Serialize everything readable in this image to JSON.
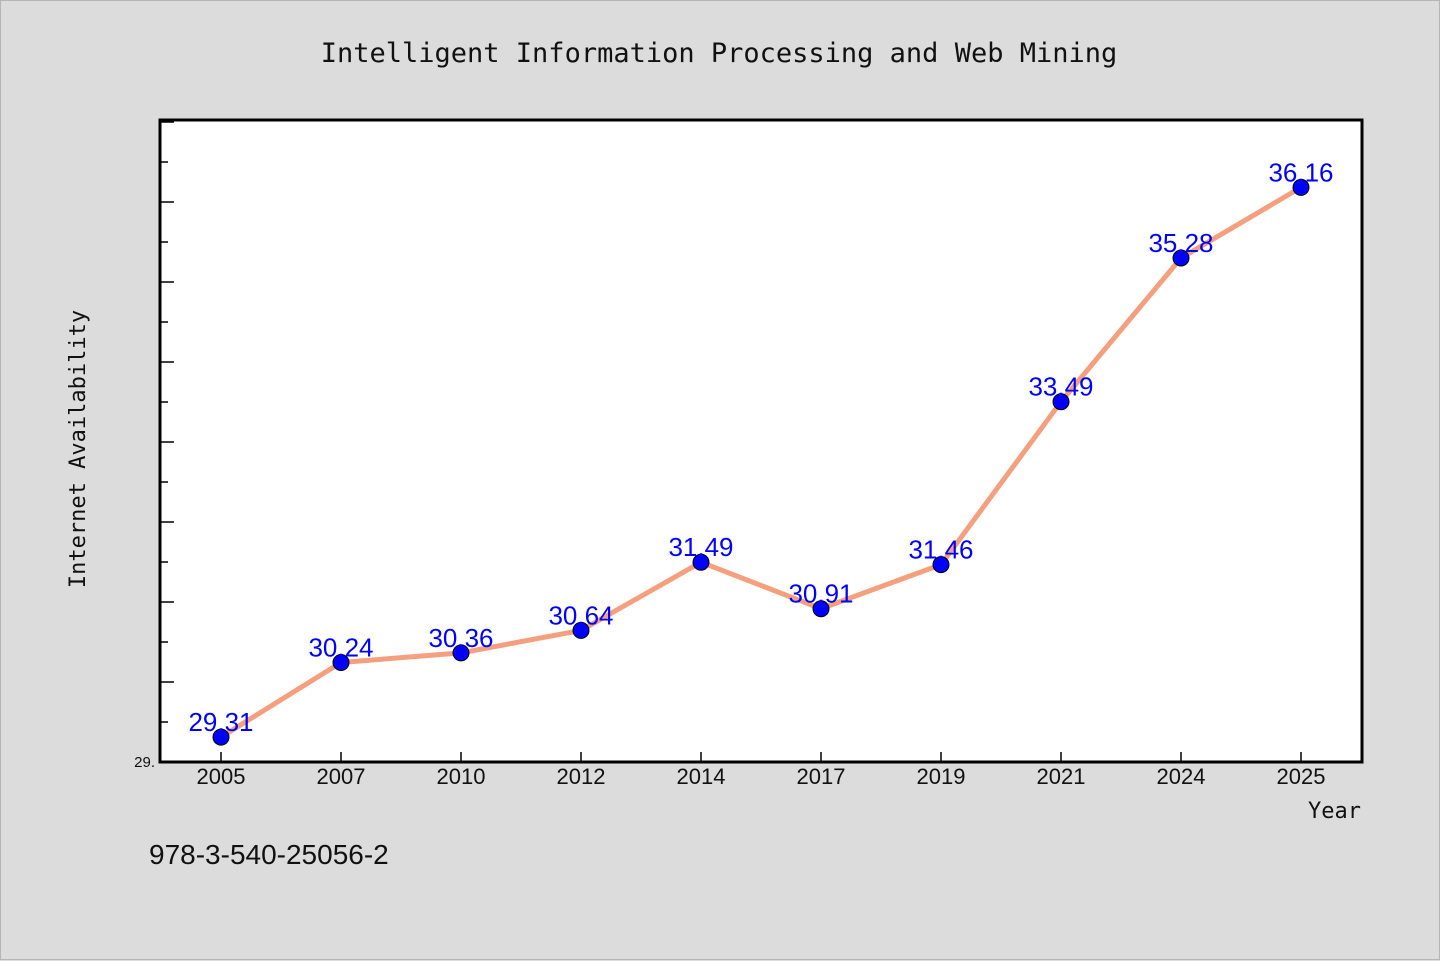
{
  "colors": {
    "background": "#dcdcdc",
    "plot_background": "#ffffff",
    "line": "#f4a07e",
    "marker": "#0000ff",
    "data_label": "#0000ff",
    "text": "#111111"
  },
  "footer_text": "978-3-540-25056-2",
  "chart_data": {
    "type": "line",
    "title": "Intelligent Information Processing and Web Mining",
    "xlabel": "Year",
    "ylabel": "Internet Availability",
    "categories": [
      "2005",
      "2007",
      "2010",
      "2012",
      "2014",
      "2017",
      "2019",
      "2021",
      "2024",
      "2025"
    ],
    "series": [
      {
        "values": [
          29.31,
          30.24,
          30.36,
          30.64,
          31.49,
          30.91,
          31.46,
          33.49,
          35.28,
          36.16
        ]
      }
    ],
    "data_labels": [
      "29.31",
      "30.24",
      "30.36",
      "30.64",
      "31.49",
      "30.91",
      "31.46",
      "33.49",
      "35.28",
      "36.16"
    ],
    "ylim": [
      29.0,
      37.0
    ],
    "y_tick_label": "29.",
    "grid": false,
    "legend": "none",
    "markers": "circle"
  }
}
